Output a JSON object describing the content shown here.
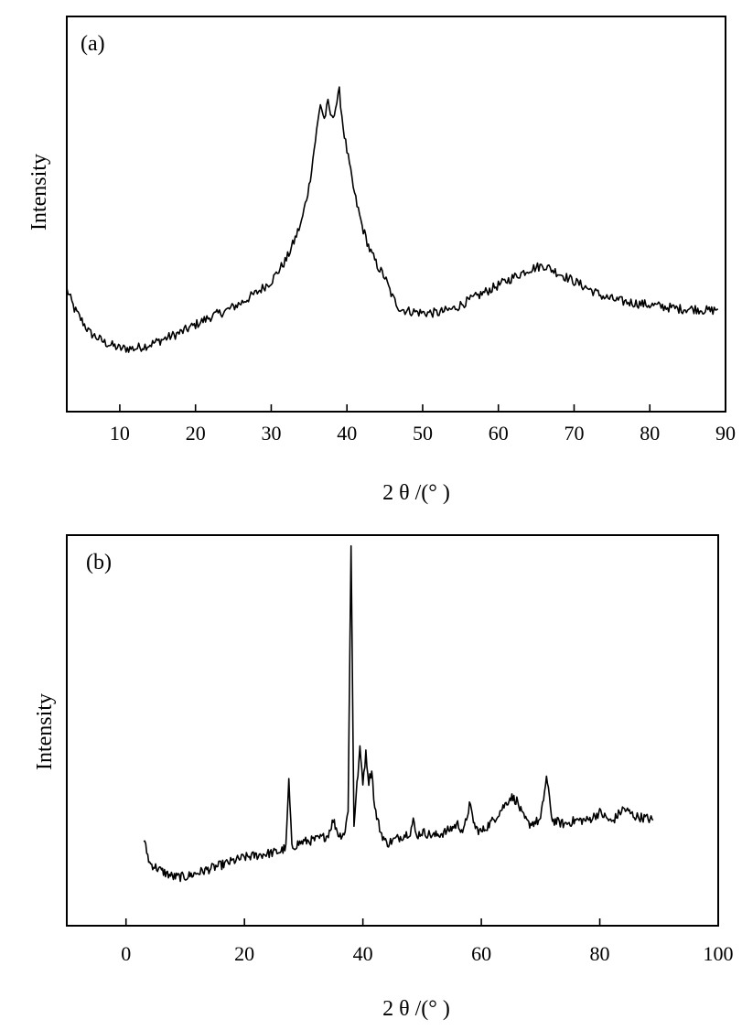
{
  "chart_data": [
    {
      "type": "line",
      "panel_label": "(a)",
      "xlabel": "2 θ /(° )",
      "ylabel": "Intensity",
      "xlim": [
        3,
        90
      ],
      "ylim": [
        0,
        100
      ],
      "x_ticks": [
        10,
        20,
        30,
        40,
        50,
        60,
        70,
        80,
        90
      ],
      "y_ticks_labeled": false,
      "grid": false,
      "series": [
        {
          "x": [
            3,
            4,
            6,
            8,
            10,
            12,
            14,
            16,
            18,
            20,
            22,
            24,
            26,
            28,
            30,
            32,
            33,
            34,
            35,
            36,
            36.5,
            37,
            37.5,
            38,
            38.5,
            39,
            39.5,
            40,
            41,
            42,
            43,
            44,
            45,
            46,
            47,
            48,
            50,
            52,
            54,
            56,
            58,
            60,
            62,
            64,
            66,
            68,
            70,
            72,
            74,
            76,
            78,
            80,
            82,
            84,
            86,
            88,
            89
          ],
          "y": [
            31,
            26,
            20,
            17.5,
            16,
            16,
            17,
            18.5,
            20,
            22,
            24,
            25.5,
            27.5,
            30,
            33,
            38.5,
            43,
            48,
            57,
            71,
            78,
            74,
            78,
            74,
            77,
            81,
            72,
            66,
            55,
            47,
            41,
            37,
            34,
            29,
            26,
            25.5,
            25,
            25,
            26,
            28,
            30,
            32,
            34,
            36,
            37,
            35,
            33,
            31,
            29,
            28,
            27.5,
            27,
            26.5,
            26,
            26,
            25.5,
            26
          ]
        }
      ]
    },
    {
      "type": "line",
      "panel_label": "(b)",
      "xlabel": "2 θ /(° )",
      "ylabel": "Intensity",
      "xlim": [
        -10,
        100
      ],
      "ylim": [
        0,
        100
      ],
      "x_ticks": [
        0,
        20,
        40,
        60,
        80,
        100
      ],
      "y_ticks_labeled": false,
      "grid": false,
      "series": [
        {
          "x": [
            3,
            4,
            6,
            8,
            10,
            12,
            14,
            16,
            18,
            20,
            22,
            24,
            26,
            27,
            27.5,
            28,
            29,
            30,
            32,
            34,
            34.5,
            35,
            36,
            37,
            37.5,
            38,
            38.5,
            39,
            39.5,
            40,
            40.5,
            41,
            41.5,
            42,
            43,
            44,
            46,
            48,
            48.5,
            49,
            50,
            52,
            54,
            56,
            57,
            58,
            59,
            60,
            62,
            64,
            65,
            66,
            67,
            68,
            70,
            71,
            72,
            74,
            76,
            78,
            80,
            82,
            84,
            86,
            88,
            89
          ],
          "y": [
            22,
            16,
            14,
            12.5,
            12.5,
            13.5,
            14.5,
            15.5,
            16.5,
            17.5,
            18,
            18.5,
            19,
            20,
            37,
            20,
            21,
            21.5,
            22,
            23,
            25,
            27,
            23,
            24,
            30,
            97,
            26,
            36,
            45,
            37,
            44,
            37,
            40,
            30,
            24,
            21,
            22.5,
            24,
            27,
            23,
            24,
            23,
            24,
            26,
            24,
            31,
            25,
            24,
            27,
            31,
            33,
            32,
            28,
            26,
            27,
            38,
            27,
            26,
            27,
            27,
            29,
            26.5,
            30,
            28,
            27.5,
            27
          ]
        }
      ]
    }
  ]
}
